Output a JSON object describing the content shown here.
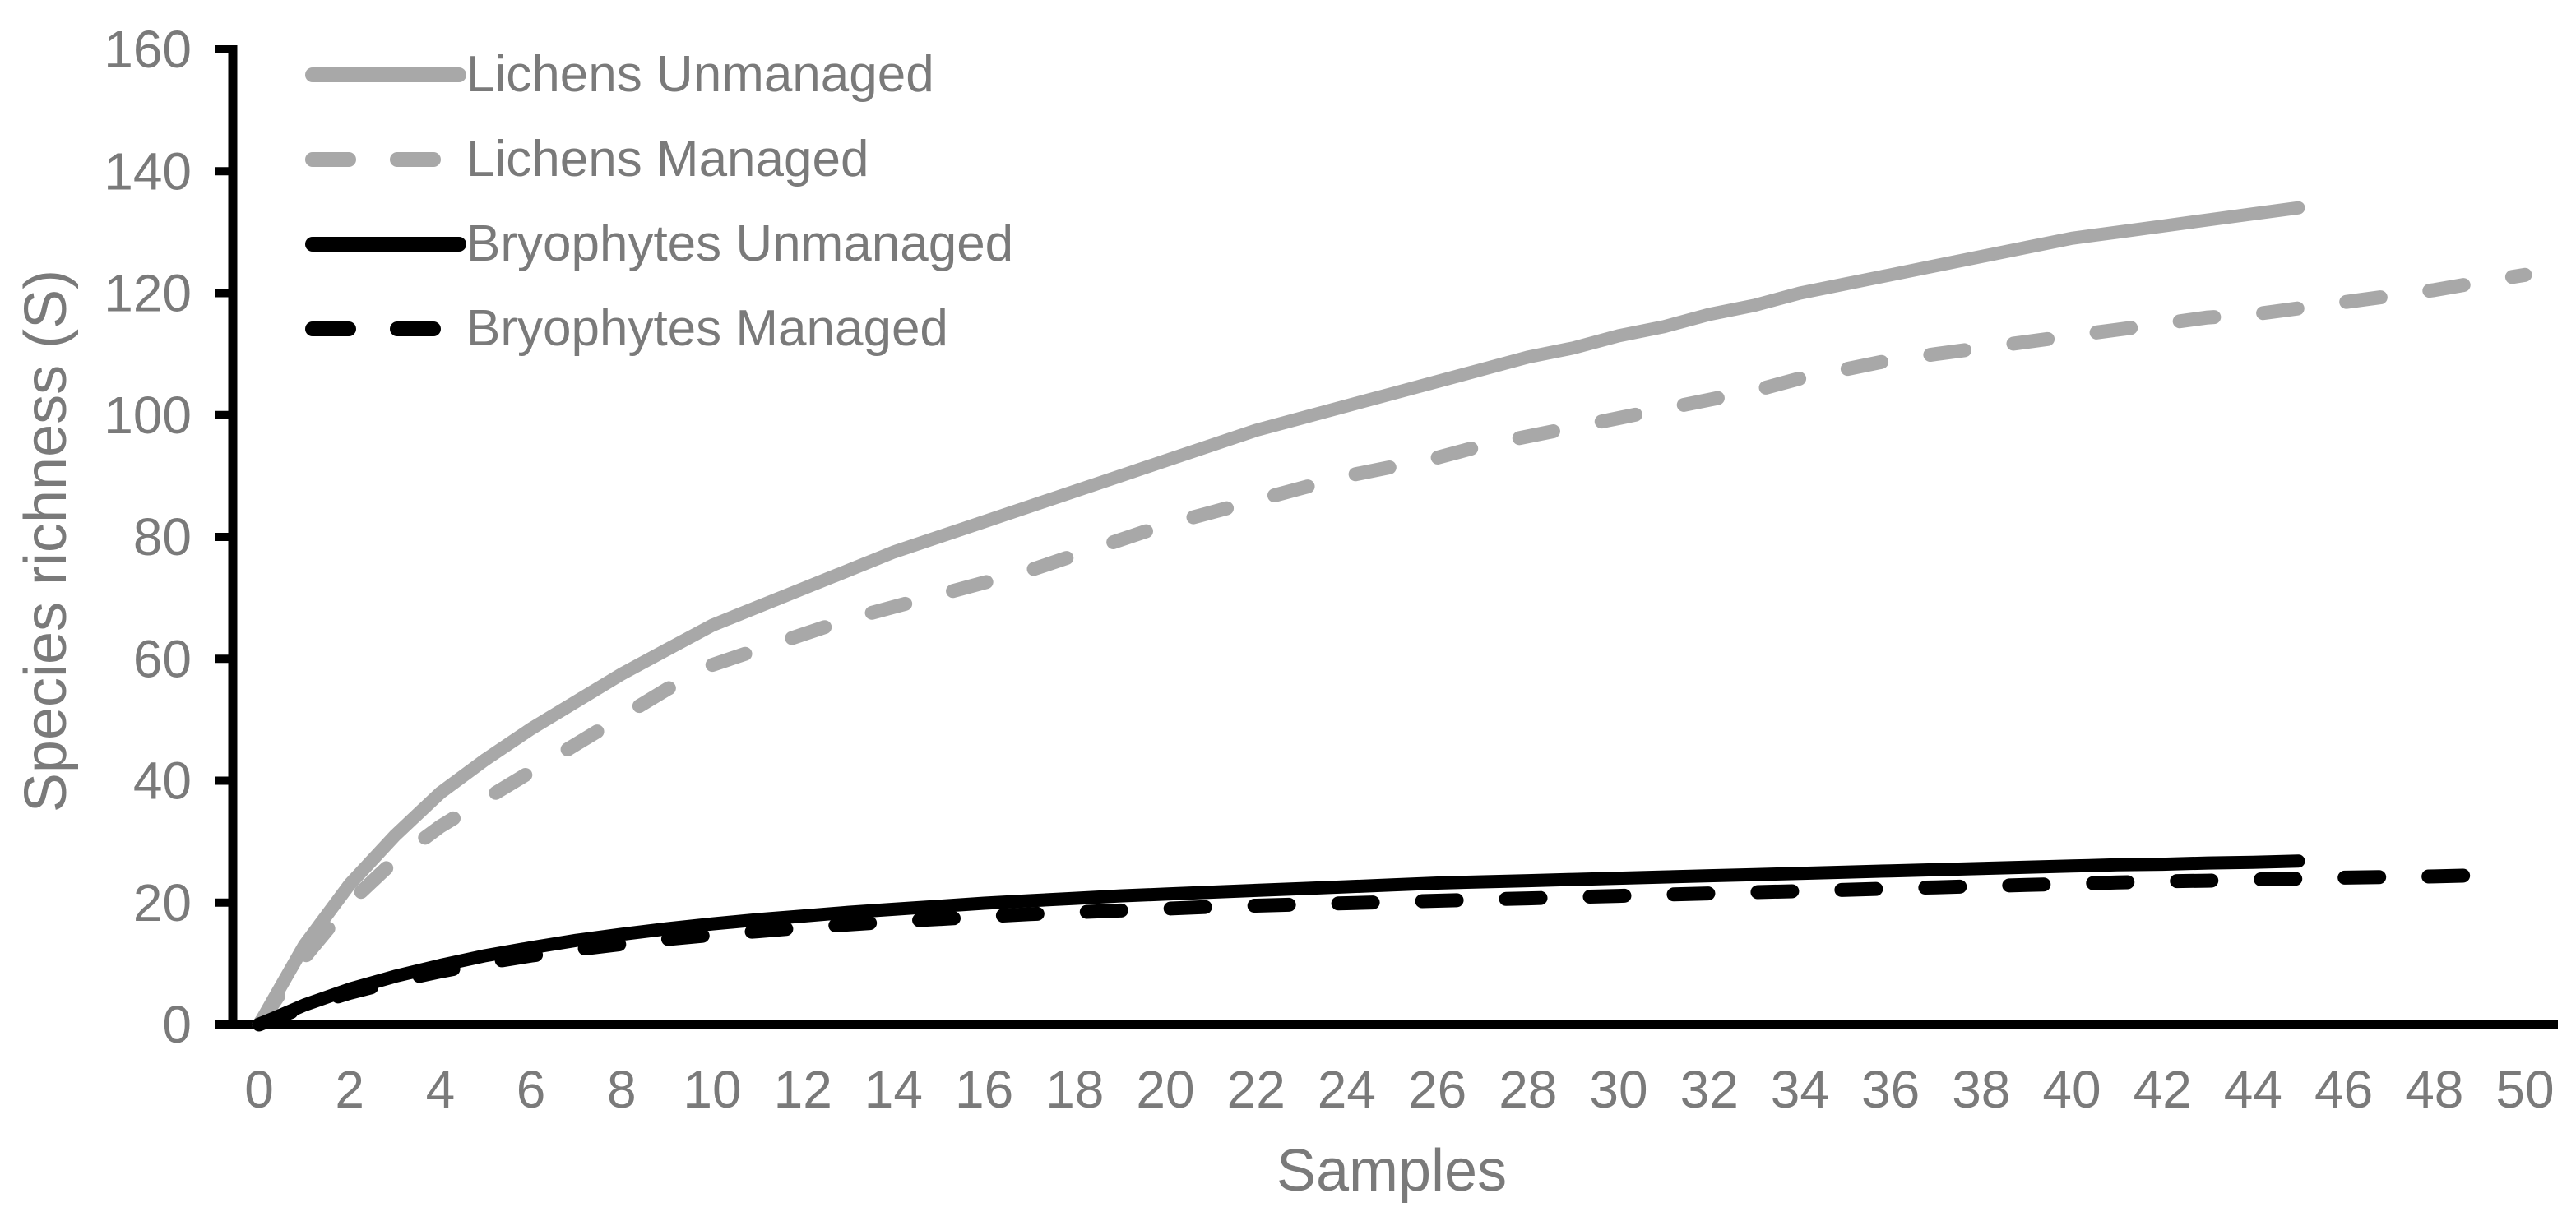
{
  "figure": {
    "background": "#ffffff"
  },
  "chart_data": {
    "type": "line",
    "title": "",
    "xlabel": "Samples",
    "ylabel": "Species richness (S)",
    "xlim": [
      0,
      50
    ],
    "ylim": [
      0,
      160
    ],
    "x_ticks": [
      0,
      2,
      4,
      6,
      8,
      10,
      12,
      14,
      16,
      18,
      20,
      22,
      24,
      26,
      28,
      30,
      32,
      34,
      36,
      38,
      40,
      42,
      44,
      46,
      48,
      50
    ],
    "y_ticks": [
      0,
      20,
      40,
      60,
      80,
      100,
      120,
      140,
      160
    ],
    "grid": false,
    "legend_position": "top-left-inside",
    "colors": {
      "lichens": "#a8a8a8",
      "bryophytes": "#000000",
      "axis": "#000000",
      "tick_text": "#7a7a7a",
      "legend_text": "#7a7a7a"
    },
    "series": [
      {
        "name": "Lichens Unmanaged",
        "color": "#a8a8a8",
        "style": "solid",
        "x": [
          0,
          1,
          2,
          3,
          4,
          5,
          6,
          7,
          8,
          9,
          10,
          11,
          12,
          13,
          14,
          15,
          16,
          17,
          18,
          19,
          20,
          21,
          22,
          23,
          24,
          25,
          26,
          27,
          28,
          29,
          30,
          31,
          32,
          33,
          34,
          35,
          36,
          37,
          38,
          39,
          40,
          41,
          42,
          43,
          44,
          45
        ],
        "y": [
          0,
          13,
          23,
          31,
          38,
          43.5,
          48.5,
          53,
          57.5,
          61.5,
          65.5,
          68.5,
          71.5,
          74.5,
          77.5,
          80,
          82.5,
          85,
          87.5,
          90,
          92.5,
          95,
          97.5,
          99.5,
          101.5,
          103.5,
          105.5,
          107.5,
          109.5,
          111,
          113,
          114.5,
          116.5,
          118,
          120,
          121.5,
          123,
          124.5,
          126,
          127.5,
          129,
          130,
          131,
          132,
          133,
          134
        ]
      },
      {
        "name": "Lichens Managed",
        "color": "#a8a8a8",
        "style": "dashed",
        "x": [
          0,
          1,
          2,
          3,
          4,
          5,
          6,
          7,
          8,
          9,
          10,
          11,
          12,
          13,
          14,
          15,
          16,
          17,
          18,
          19,
          20,
          21,
          22,
          23,
          24,
          25,
          26,
          27,
          28,
          29,
          30,
          31,
          32,
          33,
          34,
          35,
          36,
          37,
          38,
          39,
          40,
          41,
          42,
          43,
          44,
          45,
          46,
          47,
          48,
          49,
          50
        ],
        "y": [
          0,
          11,
          20,
          27,
          32.5,
          37,
          41.5,
          46,
          50.5,
          55,
          59,
          61.5,
          64,
          66.5,
          68.5,
          70.5,
          72.5,
          74.5,
          77,
          79.5,
          82,
          84,
          86,
          88,
          90,
          91.5,
          93,
          95,
          96.5,
          98,
          99.5,
          101,
          102.5,
          104,
          106,
          107.5,
          109,
          110,
          111,
          112,
          113,
          114,
          115,
          116,
          116.5,
          117.5,
          118.5,
          119.5,
          120.5,
          121.8,
          123
        ]
      },
      {
        "name": "Bryophytes Unmanaged",
        "color": "#000000",
        "style": "solid",
        "x": [
          0,
          1,
          2,
          3,
          4,
          5,
          6,
          7,
          8,
          9,
          10,
          11,
          12,
          13,
          14,
          15,
          16,
          17,
          18,
          19,
          20,
          21,
          22,
          23,
          24,
          25,
          26,
          27,
          28,
          29,
          30,
          31,
          32,
          33,
          34,
          35,
          36,
          37,
          38,
          39,
          40,
          41,
          42,
          43,
          44,
          45
        ],
        "y": [
          0,
          3.2,
          5.8,
          7.9,
          9.7,
          11.3,
          12.6,
          13.8,
          14.8,
          15.7,
          16.5,
          17.2,
          17.8,
          18.4,
          18.9,
          19.4,
          19.9,
          20.3,
          20.7,
          21.1,
          21.4,
          21.7,
          22,
          22.3,
          22.6,
          22.9,
          23.2,
          23.4,
          23.6,
          23.8,
          24,
          24.2,
          24.4,
          24.6,
          24.8,
          25,
          25.2,
          25.4,
          25.6,
          25.8,
          26,
          26.2,
          26.3,
          26.5,
          26.6,
          26.8
        ]
      },
      {
        "name": "Bryophytes Managed",
        "color": "#000000",
        "style": "dashed",
        "x": [
          0,
          1,
          2,
          3,
          4,
          5,
          6,
          7,
          8,
          9,
          10,
          11,
          12,
          13,
          14,
          15,
          16,
          17,
          18,
          19,
          20,
          21,
          22,
          23,
          24,
          25,
          26,
          27,
          28,
          29,
          30,
          31,
          32,
          33,
          34,
          35,
          36,
          37,
          38,
          39,
          40,
          41,
          42,
          43,
          44,
          45,
          46,
          47,
          48,
          49
        ],
        "y": [
          0,
          2.9,
          5.2,
          7.1,
          8.7,
          10.1,
          11.3,
          12.3,
          13.2,
          14,
          14.7,
          15.3,
          15.9,
          16.4,
          16.9,
          17.3,
          17.7,
          18.1,
          18.4,
          18.7,
          19,
          19.3,
          19.5,
          19.7,
          19.9,
          20.1,
          20.3,
          20.5,
          20.7,
          20.9,
          21.1,
          21.3,
          21.5,
          21.7,
          21.9,
          22.1,
          22.3,
          22.5,
          22.7,
          22.9,
          23.1,
          23.3,
          23.5,
          23.6,
          23.8,
          23.9,
          24.1,
          24.2,
          24.3,
          24.5
        ]
      }
    ]
  }
}
